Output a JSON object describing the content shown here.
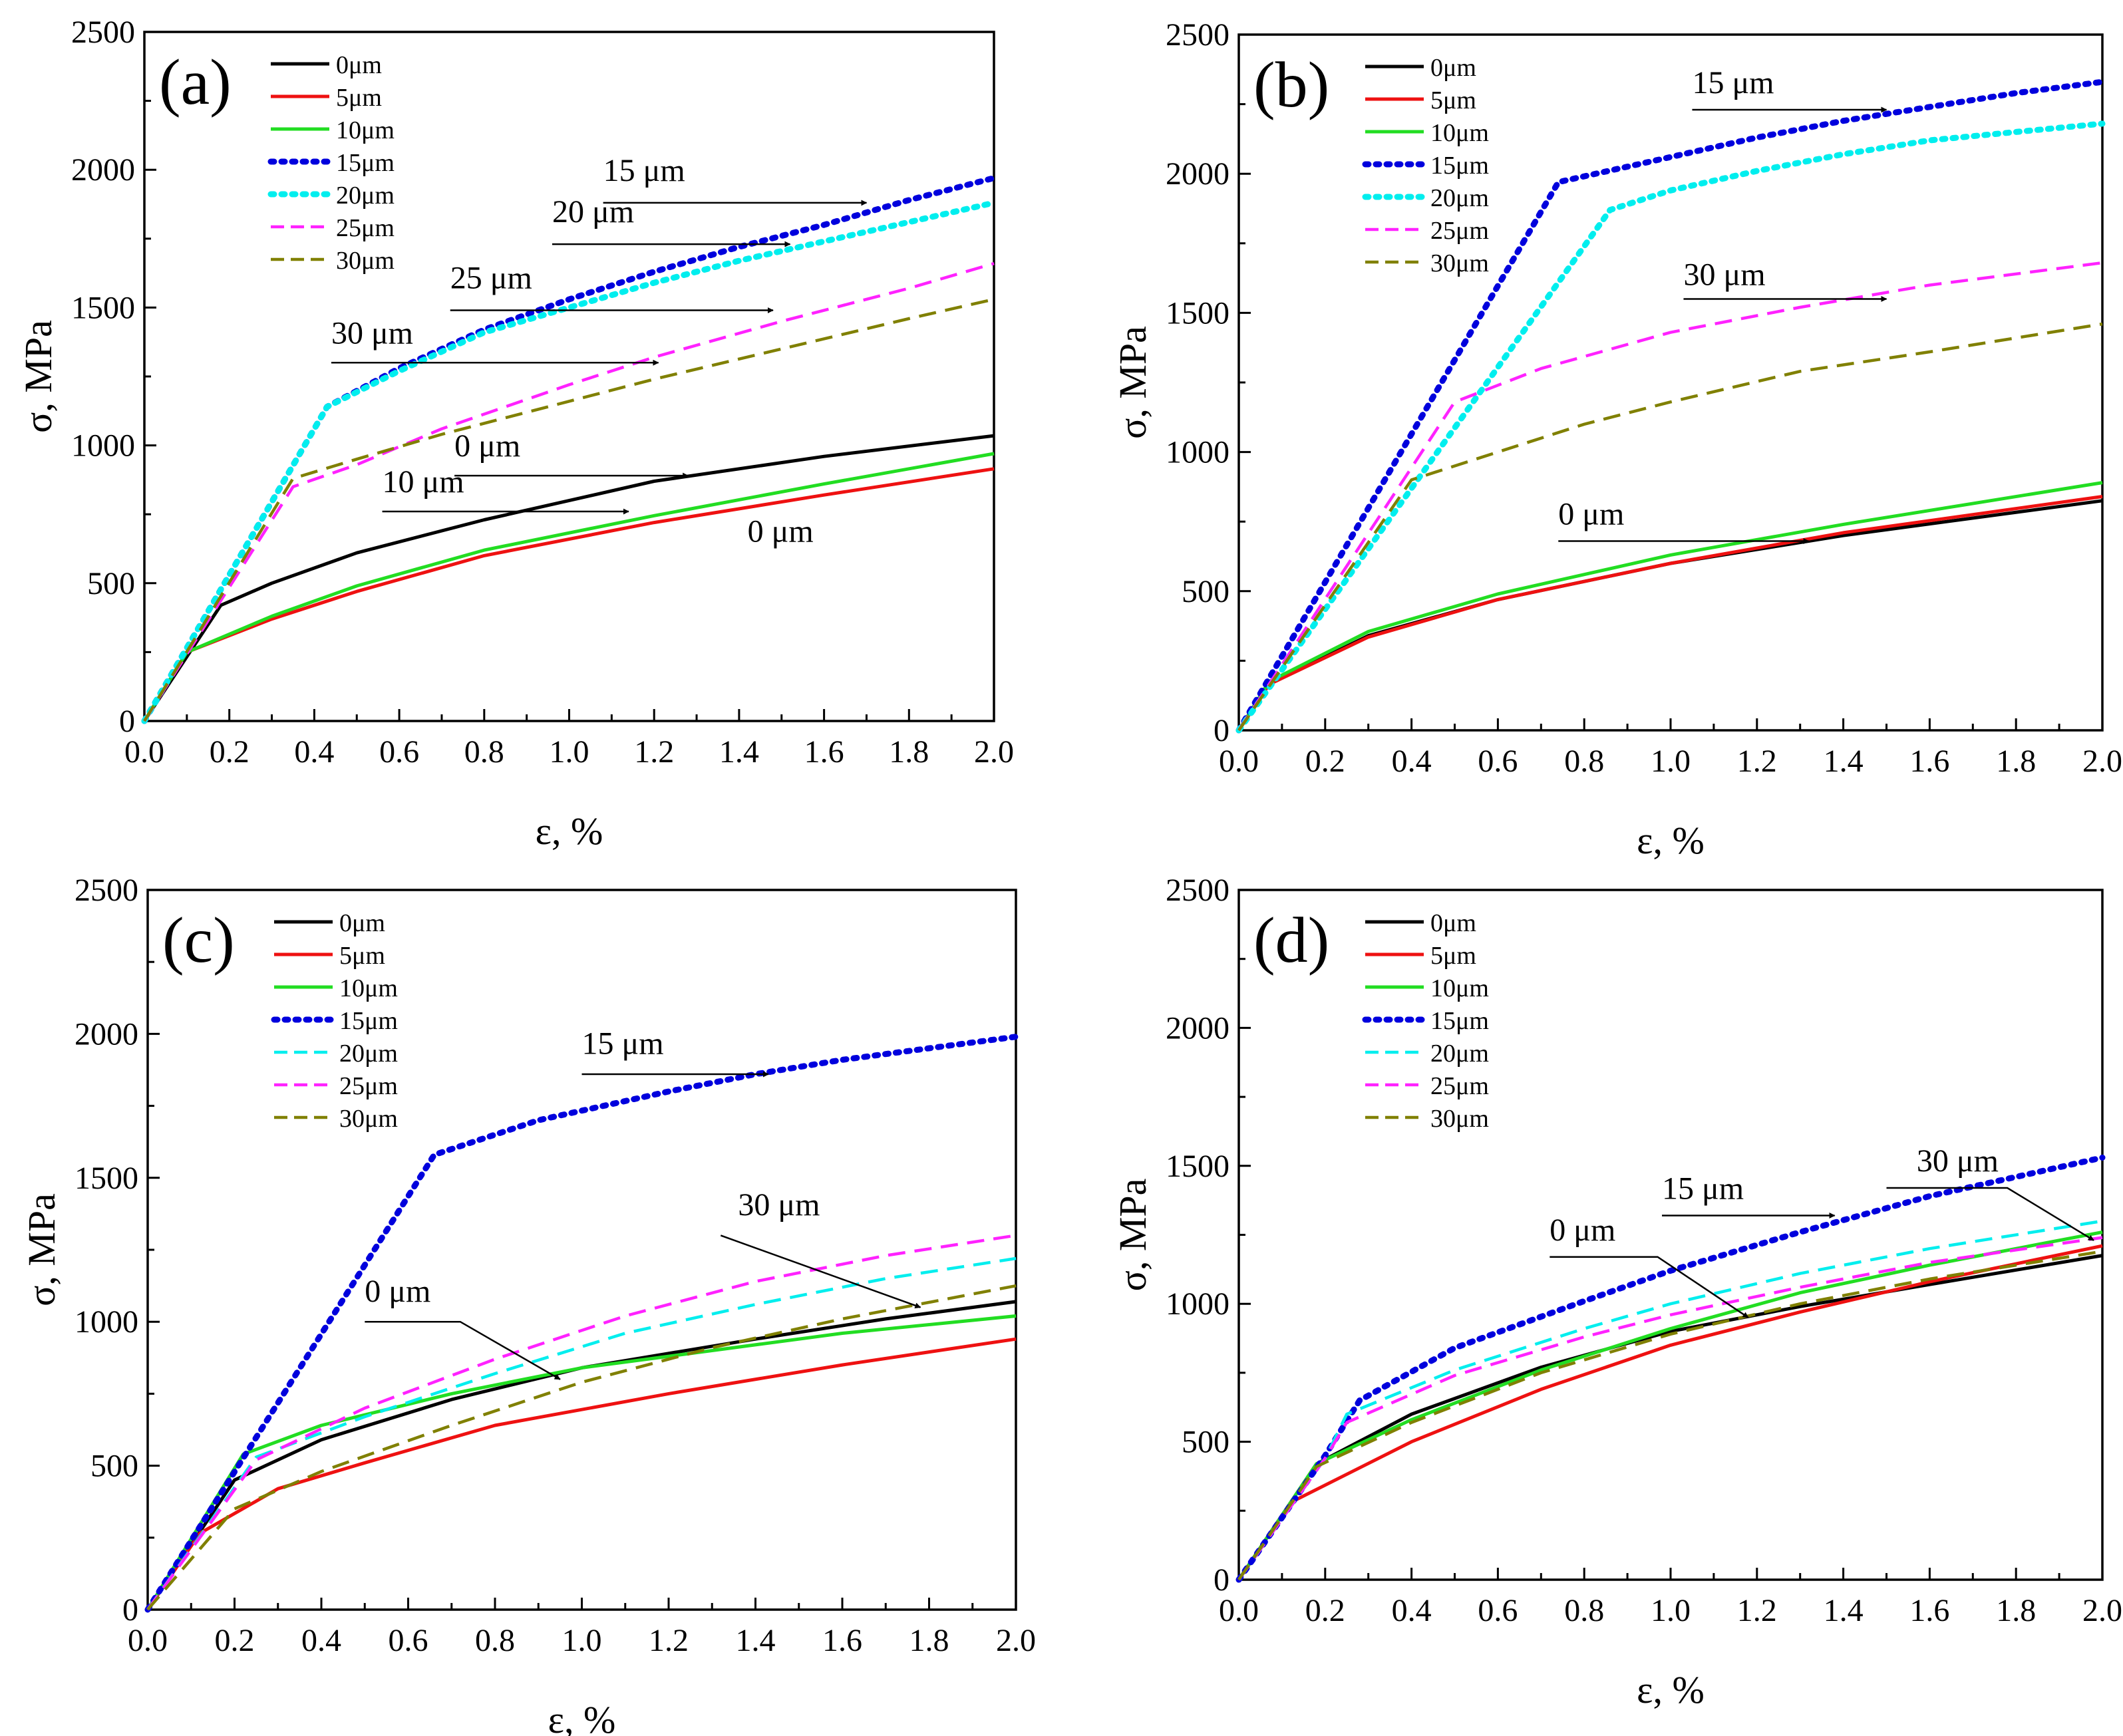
{
  "colors": {
    "0um": "#000000",
    "5um": "#ee1111",
    "10um": "#22dd22",
    "15um": "#0000dd",
    "20um": "#00eeee",
    "25um": "#ff22ff",
    "30um": "#808000"
  },
  "chart_data": [
    {
      "panel": "(a)",
      "type": "line",
      "xlabel": "ε, %",
      "ylabel": "σ, MPa",
      "xlim": [
        0,
        2.0
      ],
      "ylim": [
        0,
        2500
      ],
      "xticks": [
        "0.0",
        "0.2",
        "0.4",
        "0.6",
        "0.8",
        "1.0",
        "1.2",
        "1.4",
        "1.6",
        "1.8",
        "2.0"
      ],
      "yticks": [
        "0",
        "500",
        "1000",
        "1500",
        "2000",
        "2500"
      ],
      "grid": false,
      "legend": "top-left",
      "series": [
        {
          "name": "0μm",
          "style": "solid",
          "x": [
            0,
            0.18,
            0.3,
            0.5,
            0.8,
            1.2,
            1.6,
            2.0
          ],
          "y": [
            0,
            420,
            500,
            610,
            730,
            870,
            960,
            1035
          ]
        },
        {
          "name": "5μm",
          "style": "solid",
          "x": [
            0,
            0.1,
            0.3,
            0.5,
            0.8,
            1.2,
            1.6,
            2.0
          ],
          "y": [
            0,
            250,
            370,
            470,
            600,
            720,
            820,
            915
          ]
        },
        {
          "name": "10μm",
          "style": "solid",
          "x": [
            0,
            0.1,
            0.3,
            0.5,
            0.8,
            1.2,
            1.6,
            2.0
          ],
          "y": [
            0,
            250,
            380,
            490,
            620,
            745,
            860,
            970
          ]
        },
        {
          "name": "15μm",
          "style": "dotted",
          "x": [
            0,
            0.43,
            0.6,
            0.8,
            1.0,
            1.2,
            1.4,
            1.6,
            1.8,
            2.0
          ],
          "y": [
            0,
            1140,
            1280,
            1420,
            1530,
            1630,
            1720,
            1800,
            1890,
            1970
          ]
        },
        {
          "name": "20μm",
          "style": "dotted",
          "x": [
            0,
            0.43,
            0.6,
            0.8,
            1.0,
            1.2,
            1.4,
            1.6,
            1.8,
            2.0
          ],
          "y": [
            0,
            1140,
            1270,
            1410,
            1500,
            1590,
            1670,
            1740,
            1810,
            1880
          ]
        },
        {
          "name": "25μm",
          "style": "dashed",
          "x": [
            0,
            0.35,
            0.5,
            0.7,
            1.0,
            1.2,
            1.5,
            1.8,
            2.0
          ],
          "y": [
            0,
            850,
            930,
            1060,
            1220,
            1320,
            1450,
            1570,
            1660
          ]
        },
        {
          "name": "30μm",
          "style": "dashed",
          "x": [
            0,
            0.35,
            0.5,
            0.7,
            1.0,
            1.2,
            1.5,
            1.8,
            2.0
          ],
          "y": [
            0,
            880,
            950,
            1040,
            1160,
            1240,
            1350,
            1460,
            1530
          ]
        }
      ],
      "annotations": [
        {
          "text": "15 μm",
          "x": 1.08,
          "y": 1960,
          "ax1": 1.08,
          "ax2": 1.7,
          "ay": 1880
        },
        {
          "text": "20 μm",
          "x": 0.96,
          "y": 1810,
          "ax1": 0.96,
          "ax2": 1.52,
          "ay": 1730
        },
        {
          "text": "25 μm",
          "x": 0.72,
          "y": 1570,
          "ax1": 0.72,
          "ax2": 1.48,
          "ay": 1490
        },
        {
          "text": "30 μm",
          "x": 0.44,
          "y": 1370,
          "ax1": 0.44,
          "ax2": 1.21,
          "ay": 1300
        },
        {
          "text": "0 μm",
          "x": 0.73,
          "y": 960,
          "ax1": 0.73,
          "ax2": 1.28,
          "ay": 890
        },
        {
          "text": "10 μm",
          "x": 0.56,
          "y": 830,
          "ax1": 0.56,
          "ax2": 1.14,
          "ay": 760
        },
        {
          "text": "0 μm",
          "x": 1.42,
          "y": 650
        }
      ]
    },
    {
      "panel": "(b)",
      "type": "line",
      "xlabel": "ε, %",
      "ylabel": "σ, MPa",
      "xlim": [
        0,
        2.0
      ],
      "ylim": [
        0,
        2500
      ],
      "xticks": [
        "0.0",
        "0.2",
        "0.4",
        "0.6",
        "0.8",
        "1.0",
        "1.2",
        "1.4",
        "1.6",
        "1.8",
        "2.0"
      ],
      "yticks": [
        "0",
        "500",
        "1000",
        "1500",
        "2000",
        "2500"
      ],
      "grid": false,
      "legend": "top-left",
      "series": [
        {
          "name": "0μm",
          "style": "solid",
          "x": [
            0,
            0.07,
            0.3,
            0.6,
            1.0,
            1.4,
            2.0
          ],
          "y": [
            0,
            165,
            340,
            470,
            600,
            700,
            825
          ]
        },
        {
          "name": "5μm",
          "style": "solid",
          "x": [
            0,
            0.07,
            0.3,
            0.6,
            1.0,
            1.4,
            2.0
          ],
          "y": [
            0,
            165,
            335,
            470,
            600,
            710,
            840
          ]
        },
        {
          "name": "10μm",
          "style": "solid",
          "x": [
            0,
            0.07,
            0.3,
            0.6,
            1.0,
            1.4,
            2.0
          ],
          "y": [
            0,
            175,
            355,
            490,
            630,
            740,
            890
          ]
        },
        {
          "name": "15μm",
          "style": "dotted",
          "x": [
            0,
            0.74,
            1.0,
            1.2,
            1.4,
            1.6,
            1.8,
            2.0
          ],
          "y": [
            0,
            1970,
            2060,
            2130,
            2190,
            2240,
            2290,
            2330
          ]
        },
        {
          "name": "20μm",
          "style": "dotted",
          "x": [
            0,
            0.86,
            1.0,
            1.2,
            1.4,
            1.6,
            1.8,
            2.0
          ],
          "y": [
            0,
            1870,
            1940,
            2010,
            2070,
            2120,
            2150,
            2180
          ]
        },
        {
          "name": "25μm",
          "style": "dashed",
          "x": [
            0,
            0.5,
            0.7,
            1.0,
            1.3,
            1.6,
            2.0
          ],
          "y": [
            0,
            1180,
            1300,
            1430,
            1520,
            1600,
            1680
          ]
        },
        {
          "name": "30μm",
          "style": "dashed",
          "x": [
            0,
            0.4,
            0.6,
            0.8,
            1.0,
            1.3,
            1.6,
            2.0
          ],
          "y": [
            0,
            900,
            1000,
            1100,
            1180,
            1290,
            1360,
            1460
          ]
        }
      ],
      "annotations": [
        {
          "text": "15 μm",
          "x": 1.05,
          "y": 2290,
          "ax1": 1.05,
          "ax2": 1.5,
          "ay": 2230
        },
        {
          "text": "30 μm",
          "x": 1.03,
          "y": 1600,
          "ax1": 1.03,
          "ax2": 1.5,
          "ay": 1550
        },
        {
          "text": "0 μm",
          "x": 0.74,
          "y": 740,
          "ax1": 0.74,
          "ax2": 1.32,
          "ay": 680
        }
      ]
    },
    {
      "panel": "(c)",
      "type": "line",
      "xlabel": "ε, %",
      "ylabel": "σ, MPa",
      "xlim": [
        0,
        2.0
      ],
      "ylim": [
        0,
        2500
      ],
      "xticks": [
        "0.0",
        "0.2",
        "0.4",
        "0.6",
        "0.8",
        "1.0",
        "1.2",
        "1.4",
        "1.6",
        "1.8",
        "2.0"
      ],
      "yticks": [
        "0",
        "500",
        "1000",
        "1500",
        "2000",
        "2500"
      ],
      "grid": false,
      "legend": "top-left",
      "series": [
        {
          "name": "0μm",
          "style": "solid",
          "x": [
            0,
            0.2,
            0.4,
            0.7,
            1.0,
            1.4,
            1.7,
            2.0
          ],
          "y": [
            0,
            450,
            590,
            730,
            840,
            940,
            1010,
            1070
          ]
        },
        {
          "name": "5μm",
          "style": "solid",
          "x": [
            0,
            0.12,
            0.3,
            0.5,
            0.8,
            1.2,
            1.6,
            2.0
          ],
          "y": [
            0,
            265,
            420,
            510,
            640,
            750,
            850,
            940
          ]
        },
        {
          "name": "10μm",
          "style": "solid",
          "x": [
            0,
            0.22,
            0.4,
            0.7,
            1.0,
            1.3,
            1.6,
            2.0
          ],
          "y": [
            0,
            540,
            640,
            750,
            840,
            900,
            960,
            1020
          ]
        },
        {
          "name": "15μm",
          "style": "dotted",
          "x": [
            0,
            0.66,
            0.9,
            1.2,
            1.4,
            1.6,
            1.8,
            2.0
          ],
          "y": [
            0,
            1580,
            1700,
            1800,
            1860,
            1910,
            1950,
            1990
          ]
        },
        {
          "name": "20μm",
          "style": "dashed",
          "x": [
            0,
            0.25,
            0.5,
            0.8,
            1.1,
            1.4,
            1.7,
            2.0
          ],
          "y": [
            0,
            530,
            670,
            820,
            960,
            1060,
            1150,
            1220
          ]
        },
        {
          "name": "25μm",
          "style": "dashed",
          "x": [
            0,
            0.25,
            0.5,
            0.8,
            1.1,
            1.4,
            1.7,
            2.0
          ],
          "y": [
            0,
            520,
            700,
            870,
            1020,
            1140,
            1230,
            1300
          ]
        },
        {
          "name": "30μm",
          "style": "dashed",
          "x": [
            0,
            0.2,
            0.4,
            0.7,
            1.0,
            1.3,
            1.6,
            2.0
          ],
          "y": [
            0,
            350,
            480,
            640,
            790,
            910,
            1010,
            1125
          ]
        }
      ],
      "annotations": [
        {
          "text": "15 μm",
          "x": 1.0,
          "y": 1930,
          "ax1": 1.0,
          "ax2": 1.43,
          "ay": 1860
        },
        {
          "text": "30 μm",
          "x": 1.36,
          "y": 1370,
          "line": [
            [
              1.32,
              1300
            ],
            [
              1.78,
              1050
            ]
          ]
        },
        {
          "text": "0 μm",
          "x": 0.5,
          "y": 1070,
          "line": [
            [
              0.5,
              1000
            ],
            [
              0.72,
              1000
            ],
            [
              0.95,
              800
            ]
          ]
        }
      ]
    },
    {
      "panel": "(d)",
      "type": "line",
      "xlabel": "ε, %",
      "ylabel": "σ, MPa",
      "xlim": [
        0,
        2.0
      ],
      "ylim": [
        0,
        2500
      ],
      "xticks": [
        "0.0",
        "0.2",
        "0.4",
        "0.6",
        "0.8",
        "1.0",
        "1.2",
        "1.4",
        "1.6",
        "1.8",
        "2.0"
      ],
      "yticks": [
        "0",
        "500",
        "1000",
        "1500",
        "2000",
        "2500"
      ],
      "grid": false,
      "legend": "top-left",
      "series": [
        {
          "name": "0μm",
          "style": "solid",
          "x": [
            0,
            0.18,
            0.4,
            0.7,
            1.0,
            1.3,
            1.6,
            2.0
          ],
          "y": [
            0,
            420,
            600,
            770,
            900,
            990,
            1070,
            1175
          ]
        },
        {
          "name": "5μm",
          "style": "solid",
          "x": [
            0,
            0.12,
            0.4,
            0.7,
            1.0,
            1.3,
            1.6,
            2.0
          ],
          "y": [
            0,
            280,
            500,
            690,
            850,
            970,
            1080,
            1210
          ]
        },
        {
          "name": "10μm",
          "style": "solid",
          "x": [
            0,
            0.18,
            0.4,
            0.7,
            1.0,
            1.3,
            1.6,
            2.0
          ],
          "y": [
            0,
            420,
            580,
            760,
            910,
            1040,
            1140,
            1260
          ]
        },
        {
          "name": "15μm",
          "style": "dotted",
          "x": [
            0,
            0.2,
            0.28,
            0.5,
            0.8,
            1.0,
            1.3,
            1.6,
            2.0
          ],
          "y": [
            0,
            450,
            650,
            840,
            1010,
            1120,
            1260,
            1390,
            1530
          ]
        },
        {
          "name": "20μm",
          "style": "dashed",
          "x": [
            0,
            0.2,
            0.25,
            0.5,
            0.8,
            1.0,
            1.3,
            1.6,
            2.0
          ],
          "y": [
            0,
            440,
            600,
            760,
            910,
            1000,
            1110,
            1200,
            1300
          ]
        },
        {
          "name": "25μm",
          "style": "dashed",
          "x": [
            0,
            0.2,
            0.25,
            0.5,
            0.8,
            1.0,
            1.3,
            1.6,
            2.0
          ],
          "y": [
            0,
            440,
            570,
            740,
            880,
            960,
            1060,
            1150,
            1240
          ]
        },
        {
          "name": "30μm",
          "style": "dashed",
          "x": [
            0,
            0.18,
            0.4,
            0.7,
            1.0,
            1.3,
            1.6,
            2.0
          ],
          "y": [
            0,
            410,
            570,
            750,
            890,
            1000,
            1090,
            1190
          ]
        }
      ],
      "annotations": [
        {
          "text": "15 μm",
          "x": 0.98,
          "y": 1380,
          "ax1": 0.98,
          "ax2": 1.38,
          "ay": 1320
        },
        {
          "text": "30 μm",
          "x": 1.57,
          "y": 1480,
          "line": [
            [
              1.5,
              1420
            ],
            [
              1.78,
              1420
            ],
            [
              1.98,
              1230
            ]
          ]
        },
        {
          "text": "0 μm",
          "x": 0.72,
          "y": 1230,
          "line": [
            [
              0.72,
              1170
            ],
            [
              0.97,
              1170
            ],
            [
              1.18,
              950
            ]
          ]
        }
      ]
    }
  ]
}
